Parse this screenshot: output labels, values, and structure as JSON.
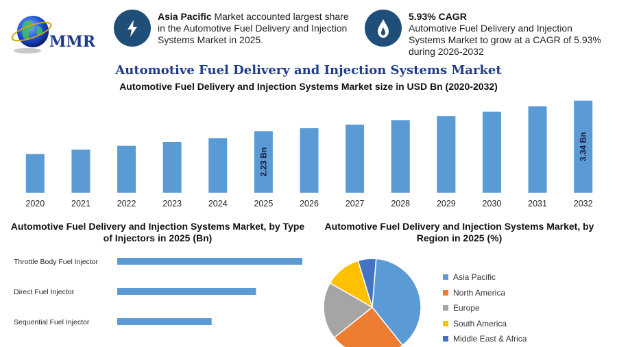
{
  "logo": {
    "text": "MMR",
    "icon": "globe-icon"
  },
  "info_left": {
    "icon": "lightning-icon",
    "bold": "Asia Pacific",
    "text": " Market accounted largest share in the Automotive Fuel Delivery and Injection Systems Market in 2025."
  },
  "info_right": {
    "icon": "flame-drop-icon",
    "bold": "5.93% CAGR",
    "text": "Automotive Fuel Delivery and Injection Systems Market to grow at a CAGR of 5.93% during 2026-2032"
  },
  "main_title": "Automotive Fuel Delivery and Injection Systems Market",
  "chart_data": [
    {
      "type": "bar",
      "title": "Automotive Fuel Delivery and Injection Systems Market size in USD Bn (2020-2032)",
      "categories": [
        "2020",
        "2021",
        "2022",
        "2023",
        "2024",
        "2025",
        "2026",
        "2027",
        "2028",
        "2029",
        "2030",
        "2031",
        "2032"
      ],
      "values": [
        1.4,
        1.56,
        1.7,
        1.84,
        1.98,
        2.23,
        2.34,
        2.47,
        2.63,
        2.78,
        2.94,
        3.13,
        3.34
      ],
      "data_labels": {
        "5": "2.23 Bn",
        "12": "3.34 Bn"
      },
      "ylim": [
        0,
        3.5
      ],
      "color": "#5b9bd5"
    },
    {
      "type": "bar",
      "orientation": "horizontal",
      "title": "Automotive Fuel Delivery and Injection Systems Market, by Type of Injectors in 2025 (Bn)",
      "categories": [
        "Throttle Body Fuel Injector",
        "Direct Fuel Injector",
        "Sequential Fuel Injector"
      ],
      "values": [
        1.0,
        0.75,
        0.51
      ],
      "color": "#5b9bd5"
    },
    {
      "type": "pie",
      "title": "Automotive Fuel Delivery and Injection Systems Market, by Region in 2025 (%)",
      "labels": [
        "Asia Pacific",
        "North America",
        "Europe",
        "South America",
        "Middle East & Africa"
      ],
      "values": [
        38,
        25,
        19,
        12,
        6
      ],
      "colors": [
        "#5b9bd5",
        "#ed7d31",
        "#a5a5a5",
        "#ffc000",
        "#4472c4"
      ],
      "legend": "right"
    }
  ]
}
